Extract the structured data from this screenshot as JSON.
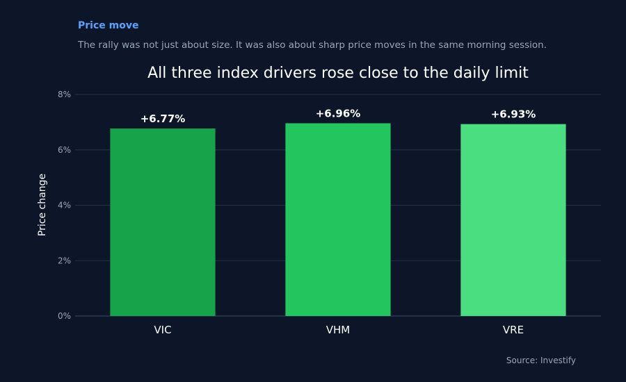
{
  "header": {
    "kicker": "Price move",
    "subtitle": "The rally was not just about size. It was also about sharp price moves in the same morning session."
  },
  "footer": {
    "source": "Source: Investify"
  },
  "colors": {
    "background": "#0c1628",
    "grid": "#22304a",
    "axis_text": "#9aa7b8",
    "label_text": "#ffffff"
  },
  "chart_data": {
    "type": "bar",
    "title": "All three index drivers rose close to the daily limit",
    "xlabel": "",
    "ylabel": "Price change",
    "ylim": [
      0,
      8
    ],
    "yticks": [
      0,
      2,
      4,
      6,
      8
    ],
    "ytick_labels": [
      "0%",
      "2%",
      "4%",
      "6%",
      "8%"
    ],
    "grid": true,
    "categories": [
      "VIC",
      "VHM",
      "VRE"
    ],
    "values": [
      6.77,
      6.96,
      6.93
    ],
    "data_labels": [
      "+6.77%",
      "+6.96%",
      "+6.93%"
    ],
    "bar_colors": [
      "#16a34a",
      "#22c55e",
      "#4ade80"
    ]
  }
}
